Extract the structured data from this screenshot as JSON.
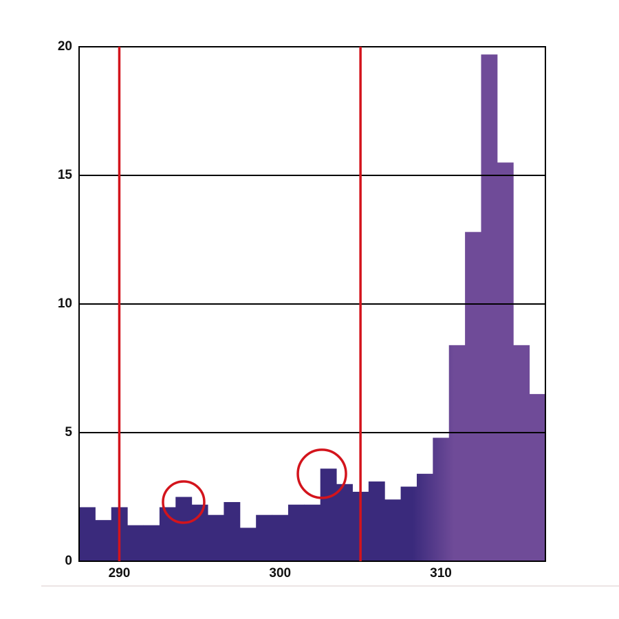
{
  "chart_data": {
    "type": "histogram",
    "bins": [
      287.5,
      288.5,
      289.5,
      290.5,
      291.5,
      292.5,
      293.5,
      294.5,
      295.5,
      296.5,
      297.5,
      298.5,
      299.5,
      300.5,
      301.5,
      302.5,
      303.5,
      304.5,
      305.5,
      306.5,
      307.5,
      308.5,
      309.5,
      310.5,
      311.5,
      312.5,
      313.5,
      314.5,
      315.5,
      316.5
    ],
    "values": [
      2.1,
      1.6,
      2.1,
      1.4,
      1.4,
      2.1,
      2.5,
      2.2,
      1.8,
      2.3,
      1.3,
      1.8,
      1.8,
      2.2,
      2.2,
      3.6,
      3.0,
      2.7,
      3.1,
      2.4,
      2.9,
      3.4,
      4.8,
      8.4,
      12.8,
      19.7,
      15.5,
      8.4,
      6.5
    ],
    "color": "#3a2a7c",
    "color_light": "#6f4b98",
    "xlim": [
      287.5,
      316.5
    ],
    "xticks": [
      290,
      300,
      310
    ],
    "ylim": [
      0,
      20
    ],
    "yticks": [
      0,
      5,
      10,
      15,
      20
    ],
    "grid": true,
    "vlines": [
      290,
      305
    ],
    "vline_color": "#d3141c",
    "circles": [
      {
        "x": 294,
        "y": 2.3
      },
      {
        "x": 302.6,
        "y": 3.4
      }
    ]
  }
}
